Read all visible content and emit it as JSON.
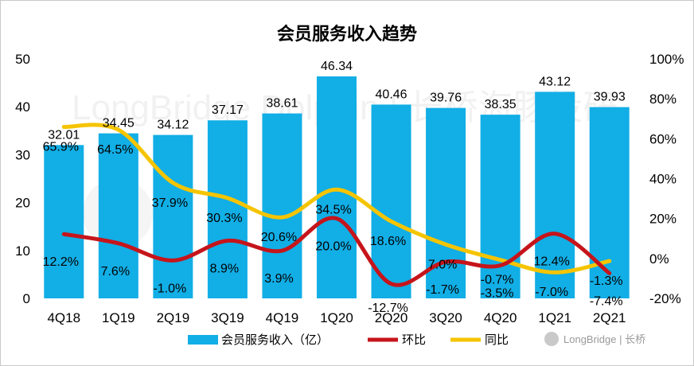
{
  "chart_data": {
    "type": "bar",
    "title": "会员服务收入趋势",
    "categories": [
      "4Q18",
      "1Q19",
      "2Q19",
      "3Q19",
      "4Q19",
      "1Q20",
      "2Q20",
      "3Q20",
      "4Q20",
      "1Q21",
      "2Q21"
    ],
    "series": [
      {
        "name": "会员服务收入（亿）",
        "type": "bar",
        "axis": "left",
        "color": "#12aee6",
        "values": [
          32.01,
          34.45,
          34.12,
          37.17,
          38.61,
          46.34,
          40.46,
          39.76,
          38.35,
          43.12,
          39.93
        ],
        "labels": [
          "32.01",
          "34.45",
          "34.12",
          "37.17",
          "38.61",
          "46.34",
          "40.46",
          "39.76",
          "38.35",
          "43.12",
          "39.93"
        ]
      },
      {
        "name": "环比",
        "type": "line",
        "axis": "right",
        "color": "#c5151b",
        "values": [
          12.2,
          7.6,
          -1.0,
          8.9,
          3.9,
          20.0,
          -12.7,
          -1.7,
          -3.5,
          12.4,
          -7.4
        ],
        "labels": [
          "12.2%",
          "7.6%",
          "-1.0%",
          "8.9%",
          "3.9%",
          "20.0%",
          "-12.7%",
          "-1.7%",
          "-3.5%",
          "12.4%",
          "-7.4%"
        ]
      },
      {
        "name": "同比",
        "type": "line",
        "axis": "right",
        "color": "#f5c400",
        "values": [
          65.9,
          64.5,
          37.9,
          30.3,
          20.6,
          34.5,
          18.6,
          7.0,
          -0.7,
          -7.0,
          -1.3
        ],
        "labels": [
          "65.9%",
          "64.5%",
          "37.9%",
          "30.3%",
          "20.6%",
          "34.5%",
          "18.6%",
          "7.0%",
          "-0.7%",
          "-7.0%",
          "-1.3%"
        ]
      }
    ],
    "y_left": {
      "ylim": [
        0,
        50
      ],
      "ticks": [
        "0",
        "10",
        "20",
        "30",
        "40",
        "50"
      ]
    },
    "y_right": {
      "ylim": [
        -20,
        100
      ],
      "ticks": [
        "-20%",
        "0%",
        "20%",
        "40%",
        "60%",
        "80%",
        "100%"
      ]
    },
    "grid": false,
    "legend_position": "bottom"
  },
  "watermark": {
    "text": "LongBridge Dolphin | 长桥海豚投研"
  },
  "brand": {
    "text": "LongBridge | 长桥"
  }
}
